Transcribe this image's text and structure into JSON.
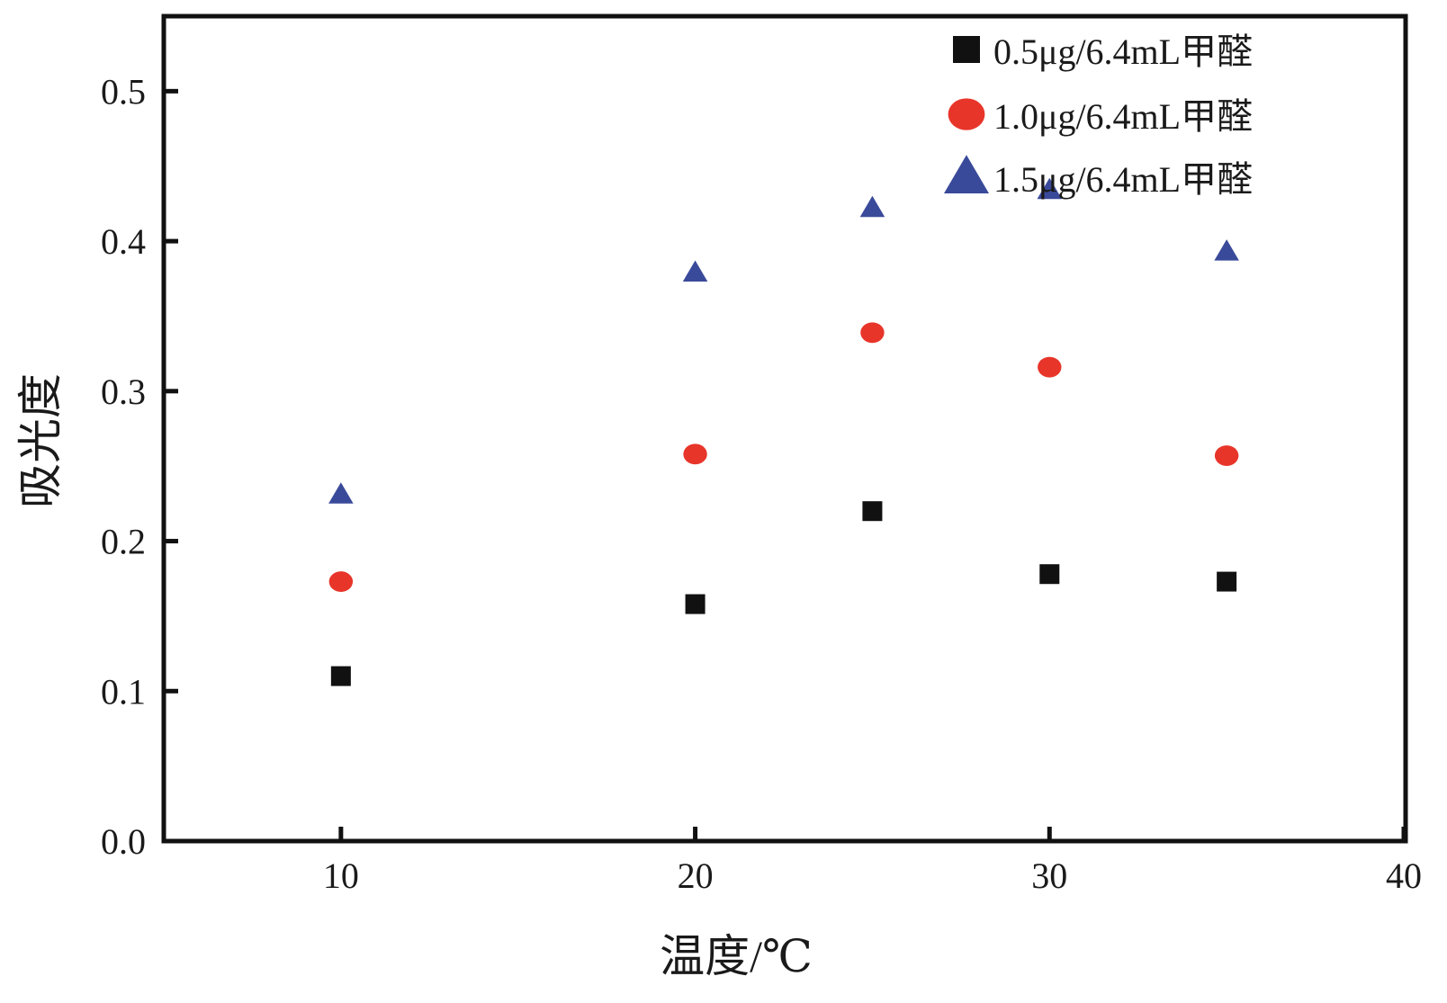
{
  "colors": {
    "axis": "#111111",
    "series_square": "#111111",
    "series_circle": "#e8352a",
    "series_triangle": "#3a4a9a"
  },
  "chart_data": {
    "type": "scatter",
    "title": "",
    "xlabel": "温度/℃",
    "ylabel": "吸光度",
    "xlim": [
      5,
      40
    ],
    "ylim": [
      0,
      0.55
    ],
    "grid": false,
    "legend_position": "top-right",
    "x_ticks": [
      10,
      20,
      30,
      40
    ],
    "x_tick_labels": [
      "10",
      "20",
      "30",
      "40"
    ],
    "y_ticks": [
      0.0,
      0.1,
      0.2,
      0.3,
      0.4,
      0.5
    ],
    "y_tick_labels": [
      "0.0",
      "0.1",
      "0.2",
      "0.3",
      "0.4",
      "0.5"
    ],
    "series": [
      {
        "name": "0.5μg/6.4mL甲醛",
        "marker": "square",
        "color": "#111111",
        "x": [
          10,
          20,
          25,
          30,
          35
        ],
        "y": [
          0.11,
          0.158,
          0.22,
          0.178,
          0.173
        ]
      },
      {
        "name": "1.0μg/6.4mL甲醛",
        "marker": "circle",
        "color": "#e8352a",
        "x": [
          10,
          20,
          25,
          30,
          35
        ],
        "y": [
          0.173,
          0.258,
          0.339,
          0.316,
          0.257
        ]
      },
      {
        "name": "1.5μg/6.4mL甲醛",
        "marker": "triangle",
        "color": "#3a4a9a",
        "x": [
          10,
          20,
          25,
          30,
          35
        ],
        "y": [
          0.231,
          0.379,
          0.422,
          0.434,
          0.393
        ]
      }
    ]
  }
}
